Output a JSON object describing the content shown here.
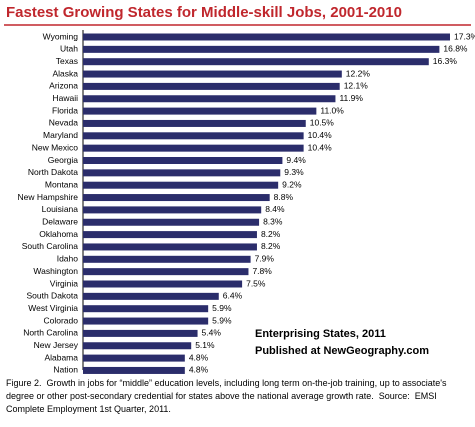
{
  "chart_data": {
    "type": "barh",
    "title": "Fastest Growing States for Middle-skill Jobs, 2001-2010",
    "categories": [
      "Wyoming",
      "Utah",
      "Texas",
      "Alaska",
      "Arizona",
      "Hawaii",
      "Florida",
      "Nevada",
      "Maryland",
      "New Mexico",
      "Georgia",
      "North Dakota",
      "Montana",
      "New Hampshire",
      "Louisiana",
      "Delaware",
      "Oklahoma",
      "South Carolina",
      "Idaho",
      "Washington",
      "Virginia",
      "South Dakota",
      "West Virginia",
      "Colorado",
      "North Carolina",
      "New Jersey",
      "Alabama",
      "Nation"
    ],
    "values": [
      17.3,
      16.8,
      16.3,
      12.2,
      12.1,
      11.9,
      11.0,
      10.5,
      10.4,
      10.4,
      9.4,
      9.3,
      9.2,
      8.8,
      8.4,
      8.3,
      8.2,
      8.2,
      7.9,
      7.8,
      7.5,
      6.4,
      5.9,
      5.9,
      5.4,
      5.1,
      4.8,
      4.8
    ],
    "value_labels": [
      "17.3%",
      "16.8%",
      "16.3%",
      "12.2%",
      "12.1%",
      "11.9%",
      "11.0%",
      "10.5%",
      "10.4%",
      "10.4%",
      "9.4%",
      "9.3%",
      "9.2%",
      "8.8%",
      "8.4%",
      "8.3%",
      "8.2%",
      "8.2%",
      "7.9%",
      "7.8%",
      "7.5%",
      "6.4%",
      "5.9%",
      "5.9%",
      "5.4%",
      "5.1%",
      "4.8%",
      "4.8%"
    ],
    "color": "#2b2d6b",
    "annotations": [
      "Enterprising States, 2011",
      "Published at NewGeography.com"
    ],
    "caption": "Figure 2.  Growth in jobs for “middle” education levels, including long term on-the-job training, up to associate's degree or other post-secondary credential for states above the national average growth rate.  Source:  EMSI Complete Employment 1st Quarter, 2011."
  }
}
